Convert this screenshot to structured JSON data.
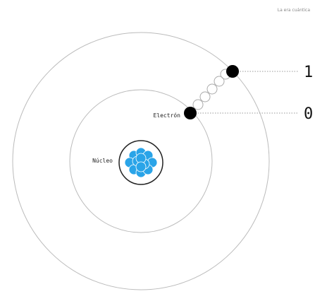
{
  "header": {
    "title": "La era cuántica"
  },
  "labels": {
    "electron": "Electrón",
    "nucleus": "Núcleo"
  },
  "states": {
    "upper": "1",
    "lower": "0"
  }
}
